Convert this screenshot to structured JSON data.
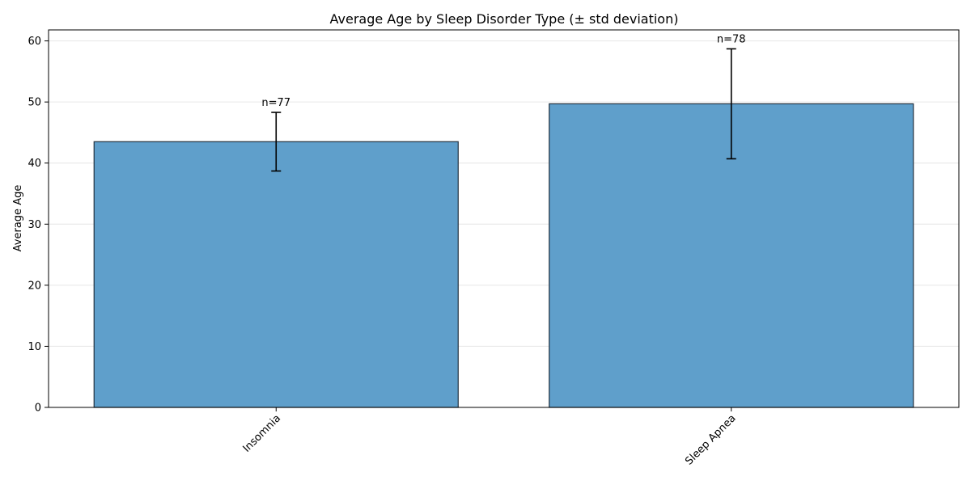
{
  "chart_data": {
    "type": "bar",
    "title": "Average Age by Sleep Disorder Type (± std deviation)",
    "xlabel": "",
    "ylabel": "Average Age",
    "categories": [
      "Insomnia",
      "Sleep Apnea"
    ],
    "values": [
      43.5,
      49.7
    ],
    "error": [
      4.8,
      9.0
    ],
    "annotations": [
      "n=77",
      "n=78"
    ],
    "ylim": [
      0,
      61.8
    ],
    "yticks": [
      0,
      10,
      20,
      30,
      40,
      50,
      60
    ],
    "grid": "y",
    "colors": {
      "bar": "#5f9fcb",
      "bar_edge": "#22313f",
      "error": "#000000",
      "grid": "#e6e6e6"
    }
  }
}
